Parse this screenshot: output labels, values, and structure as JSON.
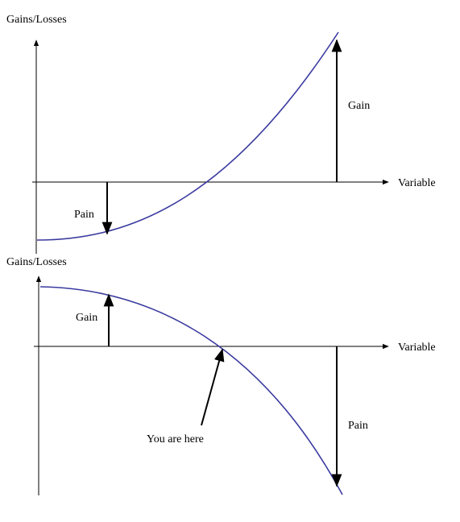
{
  "top_panel": {
    "y_axis_label": "Gains/Losses",
    "x_axis_label": "Variable",
    "pain_label": "Pain",
    "gain_label": "Gain"
  },
  "bottom_panel": {
    "y_axis_label": "Gains/Losses",
    "x_axis_label": "Variable",
    "gain_label": "Gain",
    "pain_label": "Pain",
    "callout_label": "You are here"
  },
  "colors": {
    "curve": "#3a3aa0",
    "axis": "#000000"
  }
}
